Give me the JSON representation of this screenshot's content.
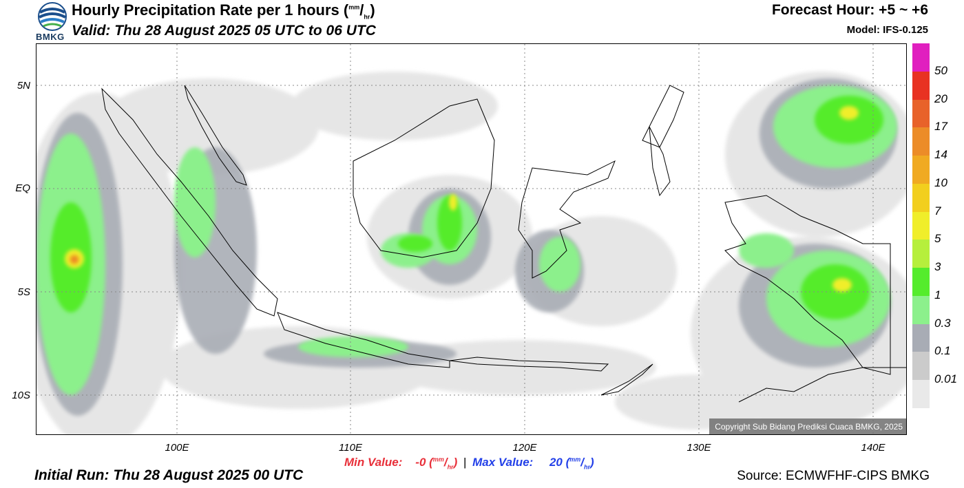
{
  "header": {
    "title_main": "Hourly Precipitation Rate per 1 hours (",
    "unit_num": "mm",
    "unit_den": "hr",
    "title_close": ")",
    "valid": "Valid: Thu 28 August 2025 05 UTC to 06 UTC",
    "forecast_hour": "Forecast Hour: +5 ~ +6",
    "model": "Model: IFS-0.125",
    "logo_text": "BMKG"
  },
  "map": {
    "lat_labels": [
      "5N",
      "EQ",
      "5S",
      "10S"
    ],
    "lon_labels": [
      "100E",
      "110E",
      "120E",
      "130E",
      "140E"
    ],
    "copyright": "Copyright Sub Bidang Prediksi Cuaca BMKG, 2025"
  },
  "colorbar": {
    "colors": [
      "#e01fbf",
      "#e83222",
      "#e8622a",
      "#ec8c28",
      "#f0aa22",
      "#f2cf1e",
      "#f0ee2a",
      "#b6ef3c",
      "#55ec2c",
      "#8cf08c",
      "#a8acb5",
      "#cbcbcb",
      "#e9e9e9"
    ],
    "labels": [
      "50",
      "20",
      "17",
      "14",
      "10",
      "7",
      "5",
      "3",
      "1",
      "0.3",
      "0.1",
      "0.01"
    ]
  },
  "footer": {
    "min_label": "Min Value:",
    "min_value": "-0",
    "max_label": "Max Value:",
    "max_value": "20",
    "separator": "|",
    "initial_run": "Initial Run: Thu 28 August 2025 00 UTC",
    "source": "Source: ECMWFHF-CIPS BMKG"
  }
}
